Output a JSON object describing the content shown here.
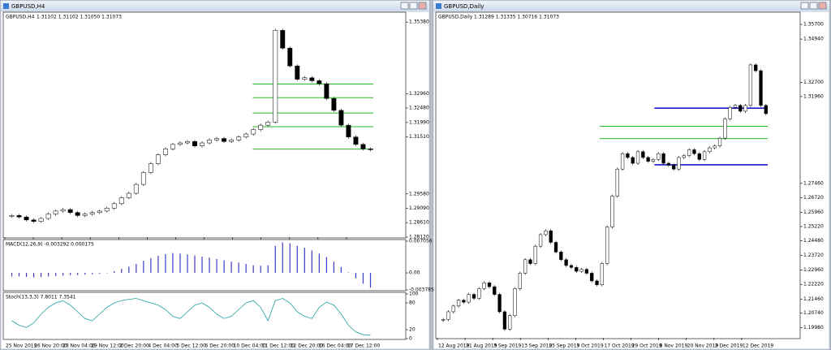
{
  "chart_data": [
    {
      "type": "candlestick",
      "title": "GBPUSD,H4",
      "quote": "1.31102 1.31102 1.31050 1.31073",
      "values": [
        1.2885,
        1.288,
        1.287,
        1.2865,
        1.2875,
        1.289,
        1.29,
        1.2905,
        1.2895,
        1.2885,
        1.289,
        1.2895,
        1.29,
        1.291,
        1.2925,
        1.2945,
        1.296,
        1.299,
        1.303,
        1.306,
        1.309,
        1.311,
        1.3125,
        1.313,
        1.3135,
        1.312,
        1.313,
        1.314,
        1.3145,
        1.3135,
        1.314,
        1.315,
        1.316,
        1.3175,
        1.319,
        1.32,
        1.351,
        1.345,
        1.339,
        1.3345,
        1.335,
        1.334,
        1.333,
        1.328,
        1.324,
        1.319,
        1.315,
        1.3125,
        1.311,
        1.31073
      ],
      "levels": [
        1.3329,
        1.3283,
        1.3231,
        1.3185,
        1.3109
      ],
      "level_color": "#22bb22",
      "up_color": "#ffffff",
      "down_color": "#000000",
      "ylim": [
        1.2812,
        1.3566
      ],
      "yticks": [
        {
          "value": 1.3538,
          "label": "1.35380"
        },
        {
          "value": 1.3296,
          "label": "1.32960"
        },
        {
          "value": 1.3248,
          "label": "1.32480"
        },
        {
          "value": 1.3199,
          "label": "1.31990"
        },
        {
          "value": 1.3151,
          "label": "1.31510"
        },
        {
          "value": 1.2958,
          "label": "1.29580"
        },
        {
          "value": 1.2909,
          "label": "1.29090"
        },
        {
          "value": 1.2861,
          "label": "1.28610"
        },
        {
          "value": 1.2812,
          "label": "1.28120"
        }
      ],
      "x_labels": [
        "25 Nov 2019",
        "26 Nov 20:00",
        "28 Nov 04:00",
        "29 Nov 12:00",
        "2 Dec 20:00",
        "4 Dec 04:00",
        "5 Dec 12:00",
        "6 Dec 20:00",
        "10 Dec 04:00",
        "11 Dec 12:00",
        "12 Dec 20:00",
        "16 Dec 04:00",
        "17 Dec 12:00"
      ]
    },
    {
      "type": "bar",
      "title": "MACD(12,26,9) -0.003292 0.000175",
      "color": "#3b3bc8",
      "values": [
        -0.0008,
        -0.0008,
        -0.0009,
        -0.001,
        -0.0009,
        -0.0008,
        -0.0007,
        -0.0006,
        -0.0005,
        -0.0005,
        -0.0004,
        -0.0003,
        -0.0002,
        0.0,
        0.0004,
        0.0009,
        0.0014,
        0.002,
        0.0027,
        0.0033,
        0.0038,
        0.0042,
        0.0044,
        0.0043,
        0.0041,
        0.0039,
        0.0036,
        0.0034,
        0.0031,
        0.0028,
        0.0025,
        0.0023,
        0.002,
        0.0017,
        0.0016,
        0.0017,
        0.006,
        0.0068,
        0.0066,
        0.006,
        0.0056,
        0.005,
        0.0043,
        0.0035,
        0.0025,
        0.0013,
        0.0001,
        -0.0012,
        -0.0024,
        -0.003292
      ],
      "ylim": [
        -0.003785,
        0.007056
      ],
      "yticks": [
        0.007056,
        {
          "value": 0,
          "label": "0.00"
        },
        -0.003785
      ]
    },
    {
      "type": "line",
      "title": "Stoch(13,3,3) 7.8011 7.3541",
      "color": "#20a0a0",
      "values": [
        40,
        30,
        25,
        35,
        55,
        70,
        80,
        85,
        75,
        60,
        45,
        40,
        55,
        70,
        80,
        85,
        88,
        90,
        85,
        80,
        75,
        65,
        50,
        45,
        60,
        75,
        80,
        70,
        55,
        45,
        50,
        65,
        80,
        85,
        70,
        40,
        85,
        90,
        80,
        60,
        50,
        45,
        70,
        82,
        75,
        55,
        30,
        15,
        9,
        7.8011
      ],
      "ylim": [
        0,
        100
      ],
      "yticks": [
        100,
        80,
        20,
        0
      ]
    },
    {
      "type": "candlestick",
      "title": "GBPUSD,Daily",
      "quote": "1.31289 1.31335 1.30716 1.31073",
      "values": [
        1.204,
        1.208,
        1.211,
        1.214,
        1.213,
        1.217,
        1.215,
        1.22,
        1.223,
        1.221,
        1.217,
        1.208,
        1.199,
        1.206,
        1.22,
        1.228,
        1.235,
        1.233,
        1.242,
        1.248,
        1.25,
        1.244,
        1.239,
        1.235,
        1.232,
        1.231,
        1.229,
        1.23,
        1.228,
        1.224,
        1.222,
        1.233,
        1.252,
        1.268,
        1.282,
        1.29,
        1.288,
        1.285,
        1.291,
        1.288,
        1.286,
        1.287,
        1.29,
        1.285,
        1.284,
        1.282,
        1.288,
        1.289,
        1.292,
        1.29,
        1.287,
        1.291,
        1.293,
        1.294,
        1.298,
        1.308,
        1.314,
        1.315,
        1.312,
        1.315,
        1.336,
        1.333,
        1.315,
        1.31073
      ],
      "levels": [
        1.3042,
        1.2978
      ],
      "level_color": "#22bb22",
      "blue_levels": [
        1.3136,
        1.2842
      ],
      "blue_color": "#1a1acc",
      "up_color": "#ffffff",
      "down_color": "#000000",
      "ylim": [
        1.1945,
        1.3625
      ],
      "yticks": [
        {
          "value": 1.357,
          "label": "1.35700"
        },
        {
          "value": 1.3494,
          "label": "1.34940"
        },
        {
          "value": 1.327,
          "label": "1.32700"
        },
        {
          "value": 1.3196,
          "label": "1.31960"
        },
        {
          "value": 1.2746,
          "label": "1.27460"
        },
        {
          "value": 1.2672,
          "label": "1.26720"
        },
        {
          "value": 1.2596,
          "label": "1.25960"
        },
        {
          "value": 1.2522,
          "label": "1.25220"
        },
        {
          "value": 1.2448,
          "label": "1.24480"
        },
        {
          "value": 1.2372,
          "label": "1.23720"
        },
        {
          "value": 1.2296,
          "label": "1.22960"
        },
        {
          "value": 1.2222,
          "label": "1.22220"
        },
        {
          "value": 1.2146,
          "label": "1.21460"
        },
        {
          "value": 1.2074,
          "label": "1.20740"
        },
        {
          "value": 1.1998,
          "label": "1.19980"
        }
      ],
      "x_labels": [
        "12 Aug 2019",
        "21 Aug 2019",
        "3 Sep 2019",
        "13 Sep 2019",
        "25 Sep 2019",
        "7 Oct 2019",
        "17 Oct 2019",
        "29 Oct 2019",
        "8 Nov 2019",
        "20 Nov 2019",
        "2 Dec 2019",
        "12 Dec 2019"
      ]
    }
  ]
}
